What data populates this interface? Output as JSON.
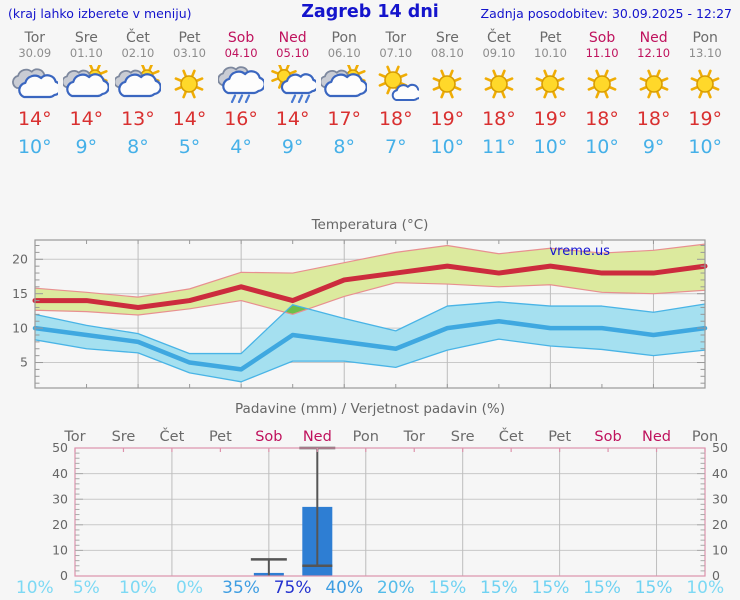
{
  "header": {
    "left_note": "(kraj lahko izberete v meniju)",
    "title": "Zagreb 14 dni",
    "updated": "Zadnja posodobitev: 30.09.2025 - 12:27"
  },
  "colors": {
    "header_blue": "#1414cc",
    "day_gray": "#6a6a6a",
    "date_gray": "#8d8d8d",
    "weekend": "#bf125d",
    "high_red": "#d93030",
    "low_blue": "#45b0e8",
    "bar_blue": "#2e7ed3",
    "whisker_gray": "#555555",
    "frame_gray": "#9a9a9a",
    "frame_pink": "#dd93ac",
    "grid_gray": "#c9c9c9",
    "band_green": "#dcea9e",
    "band_green_edge": "#e89090",
    "band_blue": "#a5e0f0",
    "band_blue_edge": "#49b4e6",
    "overlap_green": "#6cc04a",
    "line_red": "#cc2b3d",
    "line_blue": "#3fa8e0",
    "watermark_blue": "#1414d2",
    "axis_text": "#666666"
  },
  "days": [
    {
      "name": "Tor",
      "date": "30.09",
      "weekend": false,
      "icon": "cloudy",
      "high": "14",
      "low": "10",
      "precip_prob": "10%",
      "prob_color": "#7dd9f4"
    },
    {
      "name": "Sre",
      "date": "01.10",
      "weekend": false,
      "icon": "partly",
      "high": "14",
      "low": "9",
      "precip_prob": "5%",
      "prob_color": "#7dd9f4"
    },
    {
      "name": "Čet",
      "date": "02.10",
      "weekend": false,
      "icon": "partly",
      "high": "13",
      "low": "8",
      "precip_prob": "10%",
      "prob_color": "#7dd9f4"
    },
    {
      "name": "Pet",
      "date": "03.10",
      "weekend": false,
      "icon": "sunny",
      "high": "14",
      "low": "5",
      "precip_prob": "0%",
      "prob_color": "#7dd9f4"
    },
    {
      "name": "Sob",
      "date": "04.10",
      "weekend": true,
      "icon": "rain",
      "high": "16",
      "low": "4",
      "precip_prob": "35%",
      "prob_color": "#3f9ee2"
    },
    {
      "name": "Ned",
      "date": "05.10",
      "weekend": true,
      "icon": "sunrain",
      "high": "14",
      "low": "9",
      "precip_prob": "75%",
      "prob_color": "#2433cf"
    },
    {
      "name": "Pon",
      "date": "06.10",
      "weekend": false,
      "icon": "partly",
      "high": "17",
      "low": "8",
      "precip_prob": "40%",
      "prob_color": "#3f9ee2"
    },
    {
      "name": "Tor",
      "date": "07.10",
      "weekend": false,
      "icon": "mostly",
      "high": "18",
      "low": "7",
      "precip_prob": "20%",
      "prob_color": "#54bce9"
    },
    {
      "name": "Sre",
      "date": "08.10",
      "weekend": false,
      "icon": "sunny",
      "high": "19",
      "low": "10",
      "precip_prob": "15%",
      "prob_color": "#6fd2f2"
    },
    {
      "name": "Čet",
      "date": "09.10",
      "weekend": false,
      "icon": "sunny",
      "high": "18",
      "low": "11",
      "precip_prob": "15%",
      "prob_color": "#6fd2f2"
    },
    {
      "name": "Pet",
      "date": "10.10",
      "weekend": false,
      "icon": "sunny",
      "high": "19",
      "low": "10",
      "precip_prob": "15%",
      "prob_color": "#6fd2f2"
    },
    {
      "name": "Sob",
      "date": "11.10",
      "weekend": true,
      "icon": "sunny",
      "high": "18",
      "low": "10",
      "precip_prob": "15%",
      "prob_color": "#6fd2f2"
    },
    {
      "name": "Ned",
      "date": "12.10",
      "weekend": true,
      "icon": "sunny",
      "high": "18",
      "low": "9",
      "precip_prob": "15%",
      "prob_color": "#6fd2f2"
    },
    {
      "name": "Pon",
      "date": "13.10",
      "weekend": false,
      "icon": "sunny",
      "high": "19",
      "low": "10",
      "precip_prob": "10%",
      "prob_color": "#7dd9f4"
    }
  ],
  "chart_data": [
    {
      "type": "line",
      "title": "Temperatura (°C)",
      "watermark": "vreme.us",
      "categories": [
        "Tor",
        "Sre",
        "Čet",
        "Pet",
        "Sob",
        "Ned",
        "Pon",
        "Tor",
        "Sre",
        "Čet",
        "Pet",
        "Sob",
        "Ned",
        "Pon"
      ],
      "ylim": [
        1.3,
        22.8
      ],
      "yticks": [
        5,
        10,
        15,
        20
      ],
      "grid": true,
      "legend_position": "none",
      "series": [
        {
          "name": "high",
          "values": [
            14,
            14,
            13,
            14,
            16,
            14,
            17,
            18,
            19,
            18,
            19,
            18,
            18,
            19
          ]
        },
        {
          "name": "high_upper",
          "values": [
            15.8,
            15.2,
            14.5,
            15.7,
            18.1,
            18.0,
            19.5,
            21.0,
            22.0,
            20.8,
            21.6,
            20.9,
            21.3,
            22.2
          ]
        },
        {
          "name": "high_lower",
          "values": [
            12.6,
            12.4,
            11.9,
            12.8,
            14.0,
            12.0,
            14.6,
            16.6,
            16.4,
            16.0,
            16.3,
            15.2,
            15.0,
            15.5
          ]
        },
        {
          "name": "low",
          "values": [
            10,
            9,
            8,
            5,
            4,
            9,
            8,
            7,
            10,
            11,
            10,
            10,
            9,
            10
          ]
        },
        {
          "name": "low_upper",
          "values": [
            12.0,
            10.4,
            9.2,
            6.3,
            6.3,
            13.4,
            11.4,
            9.6,
            13.2,
            13.8,
            13.2,
            13.2,
            12.3,
            13.5
          ]
        },
        {
          "name": "low_lower",
          "values": [
            8.3,
            7.0,
            6.4,
            3.5,
            2.2,
            5.2,
            5.2,
            4.3,
            6.8,
            8.4,
            7.4,
            6.9,
            6.0,
            6.8
          ]
        }
      ]
    },
    {
      "type": "bar",
      "title": "Padavine (mm) / Verjetnost padavin (%)",
      "categories": [
        "Tor",
        "Sre",
        "Čet",
        "Pet",
        "Sob",
        "Ned",
        "Pon",
        "Tor",
        "Sre",
        "Čet",
        "Pet",
        "Sob",
        "Ned",
        "Pon"
      ],
      "ylim": [
        0,
        50
      ],
      "yticks": [
        0,
        10,
        20,
        30,
        40,
        50
      ],
      "grid": true,
      "values_mm": [
        0,
        0,
        0,
        0,
        1.2,
        27,
        0,
        0,
        0,
        0,
        0,
        0,
        0,
        0
      ],
      "whiskers": [
        null,
        null,
        null,
        null,
        {
          "min": 0,
          "max": 6.5
        },
        {
          "min": 4,
          "max": 50
        },
        null,
        null,
        null,
        null,
        null,
        null,
        null,
        null
      ],
      "probabilities_pct": [
        10,
        5,
        10,
        0,
        35,
        75,
        40,
        20,
        15,
        15,
        15,
        15,
        15,
        10
      ]
    }
  ]
}
